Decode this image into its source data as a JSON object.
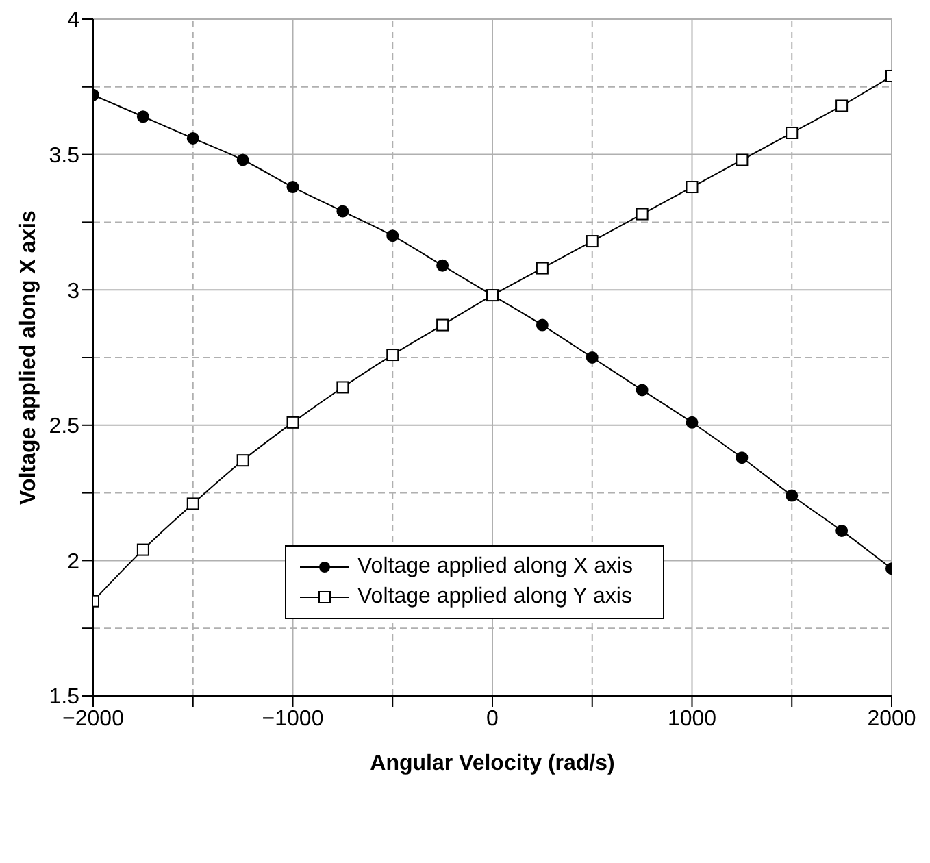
{
  "chart_data": {
    "type": "line",
    "xlabel": "Angular Velocity (rad/s)",
    "ylabel": "Voltage applied along X axis",
    "x": [
      -2000,
      -1750,
      -1500,
      -1250,
      -1000,
      -750,
      -500,
      -250,
      0,
      250,
      500,
      750,
      1000,
      1250,
      1500,
      1750,
      2000
    ],
    "series": [
      {
        "name": "Voltage applied along X axis",
        "color": "#000000",
        "marker": "circle",
        "values": [
          3.72,
          3.64,
          3.56,
          3.48,
          3.38,
          3.29,
          3.2,
          3.09,
          2.98,
          2.87,
          2.75,
          2.63,
          2.51,
          2.38,
          2.24,
          2.11,
          1.97
        ]
      },
      {
        "name": "Voltage applied along Y axis",
        "color": "#000000",
        "marker": "square",
        "values": [
          1.85,
          2.04,
          2.21,
          2.37,
          2.51,
          2.64,
          2.76,
          2.87,
          2.98,
          3.08,
          3.18,
          3.28,
          3.38,
          3.48,
          3.58,
          3.68,
          3.79
        ]
      }
    ],
    "xlim": [
      -2000,
      2000
    ],
    "xticks": [
      {
        "value": -2000,
        "label": "−2000"
      },
      {
        "value": -1500,
        "label": null
      },
      {
        "value": -1000,
        "label": "−1000"
      },
      {
        "value": -500,
        "label": null
      },
      0,
      {
        "value": 500,
        "label": null
      },
      1000,
      {
        "value": 1500,
        "label": null
      },
      2000
    ],
    "ylim": [
      1.5,
      4
    ],
    "yticks": [
      1.5,
      {
        "value": 1.75,
        "label": null
      },
      2,
      {
        "value": 2.25,
        "label": null
      },
      2.5,
      {
        "value": 2.75,
        "label": null
      },
      3,
      {
        "value": 3.25,
        "label": null
      },
      3.5,
      {
        "value": 3.75,
        "label": null
      },
      4
    ],
    "grid": true,
    "legend": "bottom",
    "line_style": "solid"
  }
}
